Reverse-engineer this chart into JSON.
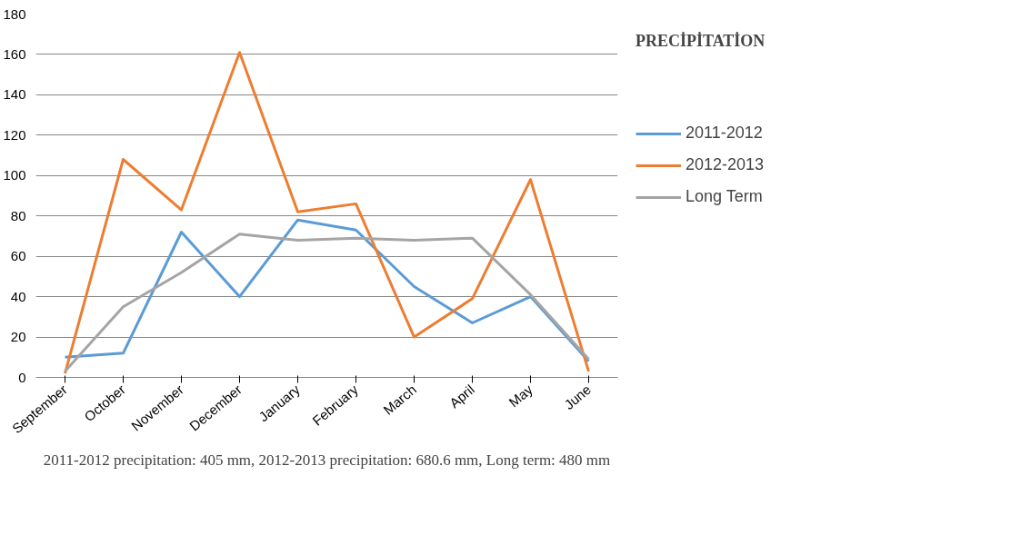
{
  "chart_data": {
    "type": "line",
    "title": "PRECİPİTATİON",
    "categories": [
      "September",
      "October",
      "November",
      "December",
      "January",
      "February",
      "March",
      "April",
      "May",
      "June"
    ],
    "series": [
      {
        "name": "2011-2012",
        "color": "#5b9bd5",
        "values": [
          10,
          12,
          72,
          40,
          78,
          73,
          45,
          27,
          40,
          8
        ]
      },
      {
        "name": "2012-2013",
        "color": "#ed7d31",
        "values": [
          2,
          108,
          83,
          161,
          82,
          86,
          20,
          39,
          98,
          3
        ]
      },
      {
        "name": "Long Term",
        "color": "#a5a5a5",
        "values": [
          3,
          35,
          52,
          71,
          68,
          69,
          68,
          69,
          41,
          9
        ]
      }
    ],
    "ylim": [
      0,
      180
    ],
    "yticks": [
      0,
      20,
      40,
      60,
      80,
      100,
      120,
      140,
      160,
      180
    ],
    "grid": "y",
    "legend": "right",
    "marker": "none",
    "line_style": "solid",
    "annotations": [
      "2011-2012 precipitation: 405 mm, 2012-2013 precipitation: 680.6 mm, Long term: 480 mm"
    ]
  }
}
